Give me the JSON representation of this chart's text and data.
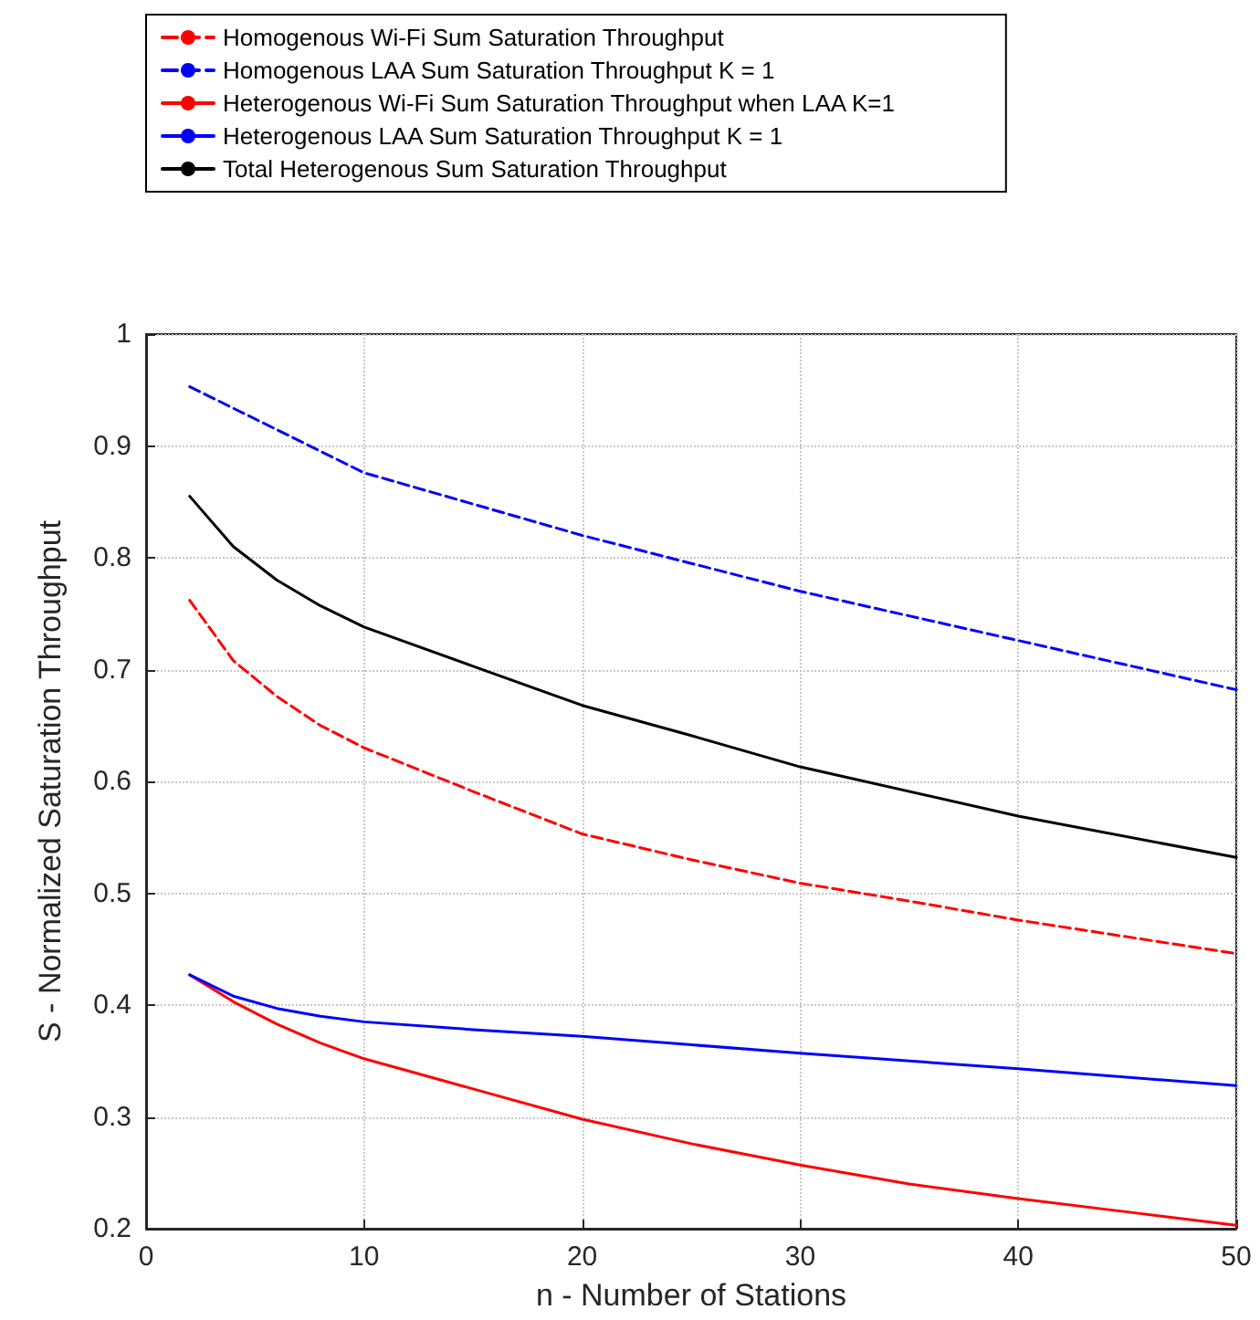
{
  "chart_data": {
    "type": "line",
    "xlabel": "n - Number of Stations",
    "ylabel": "S - Normalized Saturation Throughput",
    "xlim": [
      0,
      50
    ],
    "xticks": [
      0,
      10,
      20,
      30,
      40,
      50
    ],
    "ylim": [
      0.2,
      1
    ],
    "yticks": [
      0.2,
      0.3,
      0.4,
      0.5,
      0.6,
      0.7,
      0.8,
      0.9,
      1
    ],
    "grid": true,
    "legend": "top",
    "marker": "none",
    "series": [
      {
        "name": "Homogenous Wi-Fi Sum Saturation Throughput",
        "color": "#ff0000",
        "line_style": "dashed",
        "x": [
          2,
          4,
          6,
          8,
          10,
          15,
          20,
          25,
          30,
          35,
          40,
          50
        ],
        "values": [
          0.762,
          0.708,
          0.676,
          0.65,
          0.63,
          0.591,
          0.553,
          0.53,
          0.509,
          0.493,
          0.476,
          0.446
        ]
      },
      {
        "name": "Homogenous LAA Sum Saturation Throughput K = 1",
        "color": "#0000ff",
        "line_style": "dashed",
        "x": [
          2,
          10,
          20,
          30,
          40,
          50
        ],
        "values": [
          0.953,
          0.876,
          0.82,
          0.77,
          0.726,
          0.682
        ]
      },
      {
        "name": "Heterogenous Wi-Fi Sum Saturation Throughput when LAA K=1",
        "color": "#ff0000",
        "line_style": "solid",
        "x": [
          2,
          4,
          6,
          8,
          10,
          15,
          20,
          25,
          30,
          35,
          40,
          45,
          50
        ],
        "values": [
          0.427,
          0.403,
          0.383,
          0.366,
          0.352,
          0.325,
          0.298,
          0.276,
          0.257,
          0.24,
          0.227,
          0.215,
          0.203
        ]
      },
      {
        "name": "Heterogenous LAA Sum Saturation Throughput K = 1",
        "color": "#0000ff",
        "line_style": "solid",
        "x": [
          2,
          4,
          6,
          8,
          10,
          15,
          20,
          30,
          40,
          50
        ],
        "values": [
          0.427,
          0.408,
          0.397,
          0.39,
          0.385,
          0.378,
          0.372,
          0.357,
          0.343,
          0.328
        ]
      },
      {
        "name": "Total Heterogenous Sum Saturation Throughput",
        "color": "#000000",
        "line_style": "solid",
        "x": [
          2,
          4,
          6,
          8,
          10,
          15,
          20,
          25,
          30,
          40,
          50
        ],
        "values": [
          0.855,
          0.81,
          0.78,
          0.757,
          0.738,
          0.703,
          0.668,
          0.641,
          0.613,
          0.569,
          0.532
        ]
      }
    ]
  }
}
